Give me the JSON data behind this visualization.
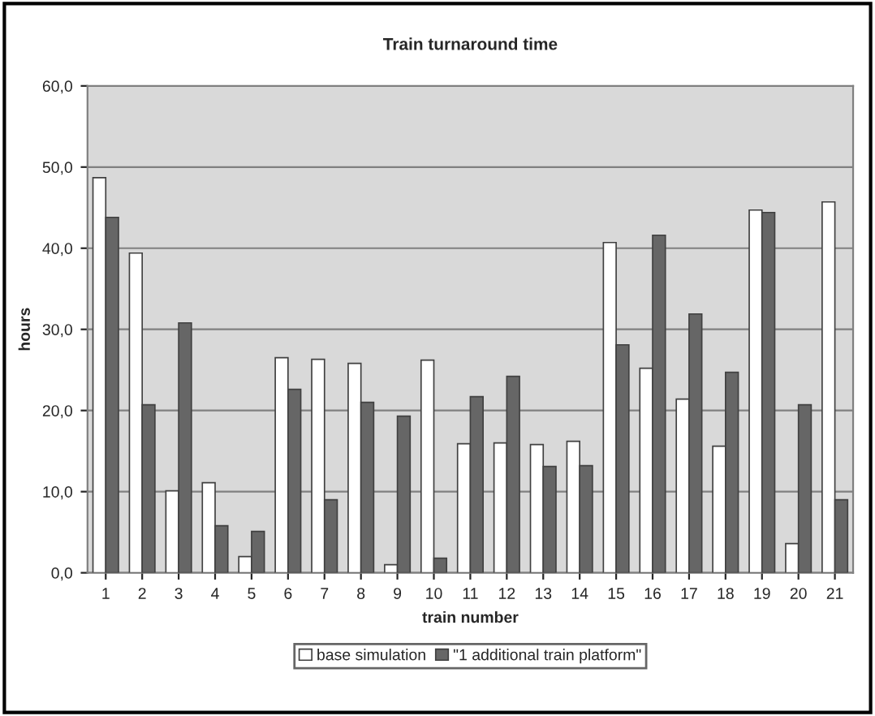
{
  "chart_data": {
    "type": "bar",
    "title": "Train turnaround time",
    "xlabel": "train number",
    "ylabel": "hours",
    "categories": [
      "1",
      "2",
      "3",
      "4",
      "5",
      "6",
      "7",
      "8",
      "9",
      "10",
      "11",
      "12",
      "13",
      "14",
      "15",
      "16",
      "17",
      "18",
      "19",
      "20",
      "21"
    ],
    "series": [
      {
        "name": "base simulation",
        "color": "#ffffff",
        "values": [
          48.7,
          39.4,
          10.1,
          11.1,
          2.0,
          26.5,
          26.3,
          25.8,
          1.0,
          26.2,
          15.9,
          16.0,
          15.8,
          16.2,
          40.7,
          25.2,
          21.4,
          15.6,
          44.7,
          3.6,
          45.7
        ]
      },
      {
        "name": "\"1 additional train platform\"",
        "color": "#666666",
        "values": [
          43.8,
          20.7,
          30.8,
          5.8,
          5.1,
          22.6,
          9.0,
          21.0,
          19.3,
          1.8,
          21.7,
          24.2,
          13.1,
          13.2,
          28.1,
          41.6,
          31.9,
          24.7,
          44.4,
          20.7,
          9.0
        ]
      }
    ],
    "ylim": [
      0,
      60
    ],
    "yticks": [
      {
        "value": 0,
        "label": "0,0"
      },
      {
        "value": 10,
        "label": "10,0"
      },
      {
        "value": 20,
        "label": "20,0"
      },
      {
        "value": 30,
        "label": "30,0"
      },
      {
        "value": 40,
        "label": "40,0"
      },
      {
        "value": 50,
        "label": "50,0"
      },
      {
        "value": 60,
        "label": "60,0"
      }
    ],
    "grid": "y",
    "legend": "bottom"
  }
}
